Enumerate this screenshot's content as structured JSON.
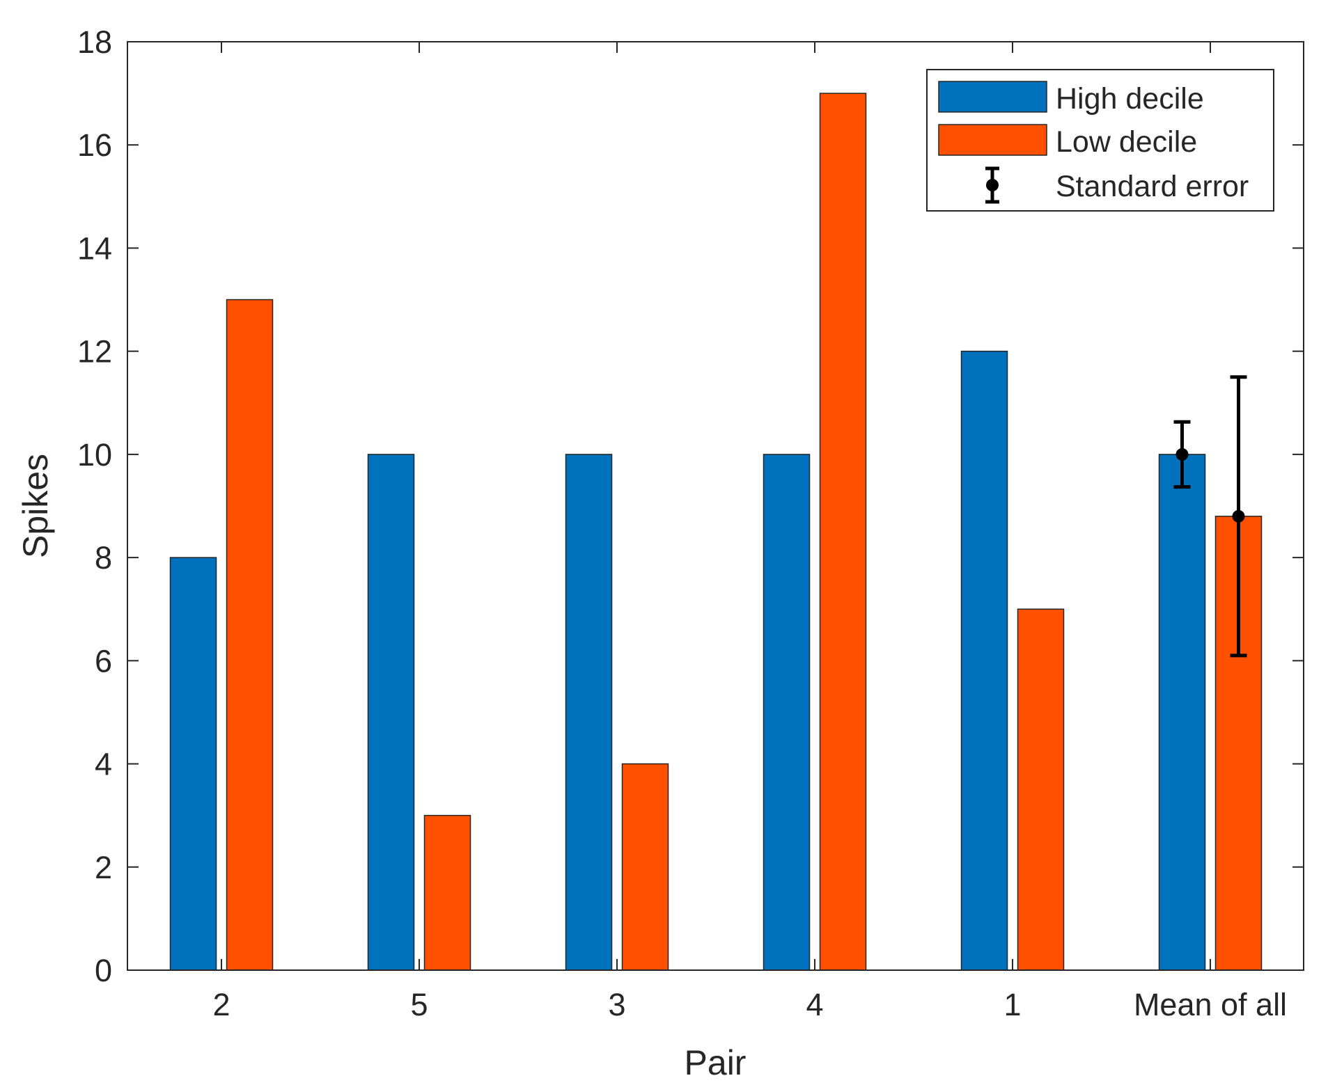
{
  "chart_data": {
    "type": "bar",
    "title": "",
    "xlabel": "Pair",
    "ylabel": "Spikes",
    "categories": [
      "2",
      "5",
      "3",
      "4",
      "1",
      "Mean of all"
    ],
    "series": [
      {
        "name": "High decile",
        "color": "#0072BD",
        "values": [
          8,
          10,
          10,
          10,
          12,
          10
        ]
      },
      {
        "name": "Low decile",
        "color": "#FF5000",
        "values": [
          13,
          3,
          4,
          17,
          7,
          8.8
        ]
      }
    ],
    "error_bars": {
      "name": "Standard error",
      "category": "Mean of all",
      "values": [
        {
          "series": "High decile",
          "mean": 10,
          "lower": 9.37,
          "upper": 10.63
        },
        {
          "series": "Low decile",
          "mean": 8.8,
          "lower": 6.1,
          "upper": 11.5
        }
      ]
    },
    "ylim": [
      0,
      18
    ],
    "yticks": [
      "0",
      "2",
      "4",
      "6",
      "8",
      "10",
      "12",
      "14",
      "16",
      "18"
    ],
    "legend_position": "top-right",
    "grid": false
  }
}
